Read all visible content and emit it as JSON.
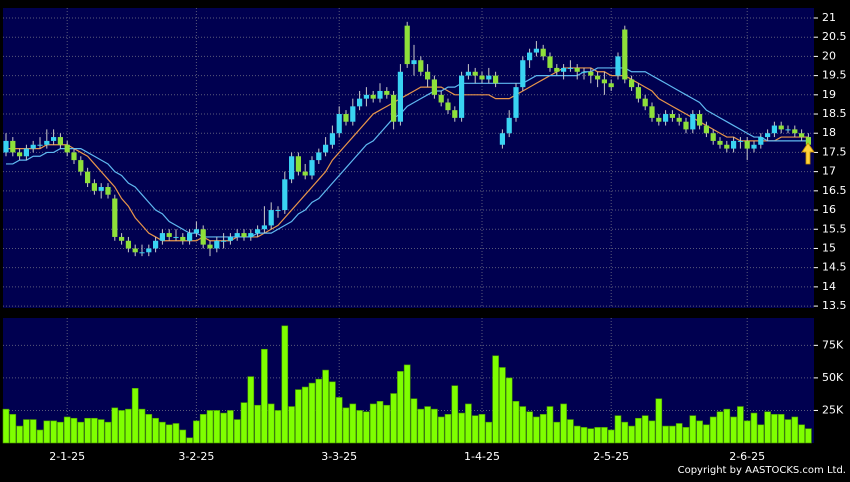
{
  "chart_data": {
    "type": "candlestick",
    "up_color": "#39d3f2",
    "down_color": "#8ee03a",
    "categories": [
      null,
      null,
      null,
      null,
      null,
      null,
      null,
      null,
      null,
      "2-1-25",
      null,
      null,
      null,
      null,
      null,
      null,
      null,
      null,
      null,
      null,
      null,
      null,
      null,
      null,
      null,
      null,
      null,
      null,
      "3-2-25",
      null,
      null,
      null,
      null,
      null,
      null,
      null,
      null,
      null,
      null,
      null,
      null,
      null,
      null,
      null,
      null,
      null,
      null,
      null,
      null,
      "3-3-25",
      null,
      null,
      null,
      null,
      null,
      null,
      null,
      null,
      null,
      null,
      null,
      null,
      null,
      null,
      null,
      null,
      null,
      null,
      null,
      null,
      "1-4-25",
      null,
      null,
      null,
      null,
      null,
      null,
      null,
      null,
      null,
      null,
      null,
      null,
      null,
      null,
      null,
      null,
      null,
      null,
      "2-5-25",
      null,
      null,
      null,
      null,
      null,
      null,
      null,
      null,
      null,
      null,
      null,
      null,
      null,
      null,
      null,
      null,
      null,
      null,
      null,
      "2-6-25",
      null,
      null,
      null,
      null,
      null,
      null,
      null,
      null,
      null
    ],
    "ohlc": [
      [
        17.5,
        18.0,
        17.4,
        17.8
      ],
      [
        17.8,
        17.9,
        17.4,
        17.5
      ],
      [
        17.5,
        17.6,
        17.3,
        17.4
      ],
      [
        17.4,
        17.7,
        17.3,
        17.6
      ],
      [
        17.6,
        17.8,
        17.5,
        17.7
      ],
      [
        17.7,
        17.9,
        17.6,
        17.7
      ],
      [
        17.7,
        18.1,
        17.6,
        17.8
      ],
      [
        17.8,
        18.1,
        17.7,
        17.9
      ],
      [
        17.9,
        18.0,
        17.6,
        17.7
      ],
      [
        17.7,
        17.8,
        17.4,
        17.5
      ],
      [
        17.5,
        17.6,
        17.2,
        17.3
      ],
      [
        17.3,
        17.4,
        16.9,
        17.0
      ],
      [
        17.0,
        17.1,
        16.6,
        16.7
      ],
      [
        16.7,
        16.8,
        16.4,
        16.5
      ],
      [
        16.5,
        16.7,
        16.3,
        16.6
      ],
      [
        16.6,
        16.7,
        16.3,
        16.4
      ],
      [
        16.3,
        16.4,
        15.2,
        15.3
      ],
      [
        15.3,
        15.4,
        15.1,
        15.2
      ],
      [
        15.2,
        15.3,
        14.9,
        15.0
      ],
      [
        15.0,
        15.1,
        14.8,
        14.9
      ],
      [
        14.9,
        15.1,
        14.8,
        14.9
      ],
      [
        14.9,
        15.1,
        14.8,
        15.0
      ],
      [
        15.0,
        15.3,
        14.9,
        15.2
      ],
      [
        15.2,
        15.5,
        15.1,
        15.4
      ],
      [
        15.4,
        15.5,
        15.2,
        15.3
      ],
      [
        15.3,
        15.5,
        15.2,
        15.3
      ],
      [
        15.3,
        15.4,
        15.1,
        15.2
      ],
      [
        15.2,
        15.5,
        15.1,
        15.4
      ],
      [
        15.4,
        15.7,
        15.3,
        15.5
      ],
      [
        15.5,
        15.6,
        15.0,
        15.1
      ],
      [
        15.1,
        15.2,
        14.8,
        15.0
      ],
      [
        15.0,
        15.3,
        14.9,
        15.2
      ],
      [
        15.2,
        15.4,
        15.0,
        15.2
      ],
      [
        15.2,
        15.4,
        15.1,
        15.3
      ],
      [
        15.3,
        15.5,
        15.2,
        15.4
      ],
      [
        15.4,
        15.5,
        15.2,
        15.3
      ],
      [
        15.3,
        15.5,
        15.2,
        15.4
      ],
      [
        15.4,
        15.6,
        15.3,
        15.5
      ],
      [
        15.5,
        16.1,
        15.4,
        15.6
      ],
      [
        15.6,
        16.2,
        15.5,
        16.0
      ],
      [
        16.0,
        16.1,
        15.8,
        16.0
      ],
      [
        16.0,
        17.0,
        15.9,
        16.8
      ],
      [
        16.8,
        17.5,
        16.7,
        17.4
      ],
      [
        17.4,
        17.5,
        16.9,
        17.0
      ],
      [
        17.0,
        17.2,
        16.8,
        16.9
      ],
      [
        16.9,
        17.4,
        16.8,
        17.3
      ],
      [
        17.3,
        17.6,
        17.2,
        17.5
      ],
      [
        17.5,
        17.9,
        17.4,
        17.7
      ],
      [
        17.7,
        18.2,
        17.6,
        18.0
      ],
      [
        18.0,
        18.7,
        17.9,
        18.5
      ],
      [
        18.5,
        18.6,
        18.2,
        18.3
      ],
      [
        18.3,
        18.9,
        18.2,
        18.7
      ],
      [
        18.7,
        19.1,
        18.6,
        18.9
      ],
      [
        18.9,
        19.2,
        18.7,
        19.0
      ],
      [
        19.0,
        19.1,
        18.8,
        18.9
      ],
      [
        18.9,
        19.3,
        18.8,
        19.1
      ],
      [
        19.1,
        19.2,
        18.9,
        19.0
      ],
      [
        19.0,
        19.1,
        18.1,
        18.3
      ],
      [
        18.3,
        19.8,
        18.2,
        19.6
      ],
      [
        20.8,
        20.9,
        19.7,
        19.8
      ],
      [
        19.8,
        20.3,
        19.5,
        19.9
      ],
      [
        19.9,
        20.0,
        19.5,
        19.6
      ],
      [
        19.6,
        19.8,
        19.2,
        19.4
      ],
      [
        19.4,
        19.5,
        18.9,
        19.0
      ],
      [
        19.0,
        19.1,
        18.7,
        18.8
      ],
      [
        18.8,
        18.9,
        18.5,
        18.6
      ],
      [
        18.6,
        18.7,
        18.3,
        18.4
      ],
      [
        18.4,
        19.6,
        18.3,
        19.5
      ],
      [
        19.5,
        19.8,
        19.4,
        19.6
      ],
      [
        19.6,
        19.7,
        19.3,
        19.5
      ],
      [
        19.5,
        19.6,
        19.3,
        19.4
      ],
      [
        19.4,
        19.7,
        19.3,
        19.5
      ],
      [
        19.5,
        19.6,
        19.2,
        19.3
      ],
      [
        17.7,
        18.1,
        17.6,
        18.0
      ],
      [
        18.0,
        18.6,
        17.9,
        18.4
      ],
      [
        18.4,
        19.3,
        18.3,
        19.2
      ],
      [
        19.2,
        20.0,
        19.1,
        19.9
      ],
      [
        19.9,
        20.2,
        19.7,
        20.1
      ],
      [
        20.1,
        20.4,
        20.0,
        20.2
      ],
      [
        20.2,
        20.3,
        19.9,
        20.0
      ],
      [
        20.0,
        20.1,
        19.6,
        19.7
      ],
      [
        19.7,
        19.8,
        19.5,
        19.6
      ],
      [
        19.6,
        19.8,
        19.4,
        19.7
      ],
      [
        19.7,
        19.9,
        19.6,
        19.7
      ],
      [
        19.7,
        19.8,
        19.4,
        19.6
      ],
      [
        19.6,
        19.7,
        19.4,
        19.6
      ],
      [
        19.6,
        19.7,
        19.3,
        19.5
      ],
      [
        19.5,
        19.6,
        19.2,
        19.4
      ],
      [
        19.4,
        19.6,
        19.0,
        19.3
      ],
      [
        19.3,
        19.4,
        19.1,
        19.2
      ],
      [
        19.5,
        20.1,
        19.4,
        20.0
      ],
      [
        20.7,
        20.8,
        19.3,
        19.4
      ],
      [
        19.4,
        19.5,
        19.1,
        19.2
      ],
      [
        19.2,
        19.3,
        18.8,
        18.9
      ],
      [
        18.9,
        19.0,
        18.6,
        18.7
      ],
      [
        18.7,
        18.8,
        18.3,
        18.4
      ],
      [
        18.4,
        18.5,
        18.2,
        18.3
      ],
      [
        18.3,
        18.6,
        18.2,
        18.5
      ],
      [
        18.5,
        18.6,
        18.3,
        18.4
      ],
      [
        18.4,
        18.5,
        18.2,
        18.3
      ],
      [
        18.3,
        18.4,
        18.0,
        18.1
      ],
      [
        18.1,
        18.6,
        18.0,
        18.5
      ],
      [
        18.5,
        18.6,
        18.1,
        18.2
      ],
      [
        18.2,
        18.3,
        17.9,
        18.0
      ],
      [
        18.0,
        18.1,
        17.7,
        17.8
      ],
      [
        17.8,
        17.9,
        17.6,
        17.7
      ],
      [
        17.7,
        17.8,
        17.5,
        17.6
      ],
      [
        17.6,
        17.9,
        17.5,
        17.8
      ],
      [
        17.8,
        17.9,
        17.6,
        17.8
      ],
      [
        17.8,
        17.9,
        17.3,
        17.6
      ],
      [
        17.6,
        17.8,
        17.5,
        17.7
      ],
      [
        17.7,
        18.0,
        17.6,
        17.9
      ],
      [
        17.9,
        18.1,
        17.8,
        18.0
      ],
      [
        18.0,
        18.3,
        17.9,
        18.2
      ],
      [
        18.2,
        18.3,
        18.0,
        18.1
      ],
      [
        18.1,
        18.2,
        18.0,
        18.1
      ],
      [
        18.1,
        18.2,
        17.9,
        18.0
      ],
      [
        18.0,
        18.1,
        17.8,
        17.9
      ],
      [
        17.9,
        18.0,
        17.6,
        17.7
      ]
    ],
    "lines": [
      {
        "color": "#e8954a",
        "values": [
          17.6,
          17.6,
          17.6,
          17.6,
          17.6,
          17.6,
          17.7,
          17.7,
          17.7,
          17.7,
          17.6,
          17.5,
          17.4,
          17.2,
          17.0,
          16.8,
          16.6,
          16.3,
          16.1,
          15.8,
          15.6,
          15.4,
          15.3,
          15.2,
          15.2,
          15.2,
          15.2,
          15.2,
          15.2,
          15.3,
          15.2,
          15.2,
          15.2,
          15.2,
          15.3,
          15.3,
          15.3,
          15.3,
          15.4,
          15.5,
          15.6,
          15.8,
          16.0,
          16.2,
          16.4,
          16.6,
          16.8,
          17.0,
          17.3,
          17.5,
          17.7,
          17.9,
          18.1,
          18.3,
          18.5,
          18.6,
          18.7,
          18.8,
          18.9,
          19.0,
          19.1,
          19.2,
          19.2,
          19.2,
          19.2,
          19.1,
          19.0,
          19.0,
          19.0,
          19.0,
          19.0,
          19.0,
          18.9,
          18.9,
          18.9,
          19.0,
          19.1,
          19.2,
          19.3,
          19.4,
          19.5,
          19.6,
          19.7,
          19.7,
          19.7,
          19.7,
          19.7,
          19.6,
          19.6,
          19.5,
          19.5,
          19.5,
          19.4,
          19.3,
          19.2,
          19.1,
          18.9,
          18.8,
          18.7,
          18.6,
          18.5,
          18.4,
          18.3,
          18.2,
          18.1,
          18.0,
          17.9,
          17.9,
          17.8,
          17.8,
          17.8,
          17.8,
          17.8,
          17.8,
          17.9,
          17.9,
          17.9,
          17.9,
          17.9
        ]
      },
      {
        "color": "#5fb8f0",
        "values": [
          17.2,
          17.2,
          17.3,
          17.3,
          17.4,
          17.4,
          17.5,
          17.5,
          17.6,
          17.6,
          17.6,
          17.6,
          17.5,
          17.4,
          17.3,
          17.2,
          17.0,
          16.9,
          16.7,
          16.6,
          16.4,
          16.2,
          16.0,
          15.9,
          15.7,
          15.6,
          15.5,
          15.4,
          15.4,
          15.3,
          15.3,
          15.3,
          15.3,
          15.3,
          15.3,
          15.3,
          15.3,
          15.4,
          15.4,
          15.4,
          15.5,
          15.6,
          15.7,
          15.9,
          16.0,
          16.2,
          16.3,
          16.5,
          16.7,
          16.9,
          17.1,
          17.3,
          17.5,
          17.7,
          17.8,
          18.0,
          18.2,
          18.4,
          18.5,
          18.7,
          18.8,
          18.9,
          19.0,
          19.1,
          19.1,
          19.2,
          19.2,
          19.3,
          19.3,
          19.3,
          19.3,
          19.3,
          19.3,
          19.3,
          19.3,
          19.3,
          19.3,
          19.4,
          19.5,
          19.5,
          19.5,
          19.5,
          19.5,
          19.5,
          19.5,
          19.6,
          19.6,
          19.7,
          19.7,
          19.7,
          19.7,
          19.7,
          19.6,
          19.6,
          19.6,
          19.5,
          19.4,
          19.3,
          19.2,
          19.1,
          19.0,
          18.9,
          18.8,
          18.6,
          18.5,
          18.4,
          18.3,
          18.2,
          18.1,
          18.0,
          17.9,
          17.9,
          17.8,
          17.8,
          17.8,
          17.8,
          17.8,
          17.8,
          17.8
        ]
      }
    ],
    "ylim": [
      13.45,
      21.26
    ],
    "yticks": [
      13.5,
      14,
      14.5,
      15,
      15.5,
      16,
      16.5,
      17,
      17.5,
      18,
      18.5,
      19,
      19.5,
      20,
      20.5,
      21
    ],
    "grid": true,
    "volume": {
      "color": "#7fff00",
      "values": [
        26000,
        22000,
        13000,
        18000,
        18000,
        10000,
        17000,
        17000,
        16000,
        20000,
        19000,
        16000,
        19000,
        19000,
        18000,
        16000,
        27000,
        25000,
        26000,
        42000,
        26000,
        22000,
        19000,
        16000,
        14000,
        15000,
        10000,
        4000,
        17000,
        22000,
        25000,
        25000,
        23000,
        25000,
        18000,
        31000,
        51000,
        29000,
        72000,
        30000,
        25000,
        90000,
        28000,
        41000,
        43000,
        46000,
        49000,
        56000,
        47000,
        35000,
        27000,
        30000,
        25000,
        24000,
        30000,
        32000,
        29000,
        38000,
        55000,
        60000,
        34000,
        26000,
        28000,
        26000,
        20000,
        22000,
        44000,
        23000,
        30000,
        21000,
        22000,
        16000,
        67000,
        58000,
        50000,
        32000,
        28000,
        24000,
        20000,
        22000,
        28000,
        16000,
        30000,
        18000,
        13000,
        12000,
        11000,
        12000,
        12000,
        10000,
        21000,
        16000,
        13000,
        19000,
        21000,
        17000,
        34000,
        13000,
        13000,
        15000,
        12000,
        21000,
        17000,
        14000,
        20000,
        24000,
        26000,
        20000,
        28000,
        17000,
        23000,
        14000,
        24000,
        22000,
        22000,
        18000,
        20000,
        14000,
        11000
      ],
      "ylim": [
        0,
        96000
      ],
      "yticks": [
        {
          "value": 25000,
          "label": "25K"
        },
        {
          "value": 50000,
          "label": "50K"
        },
        {
          "value": 75000,
          "label": "75K"
        }
      ]
    },
    "copyright": "Copyright by AASTOCKS.com Ltd."
  }
}
